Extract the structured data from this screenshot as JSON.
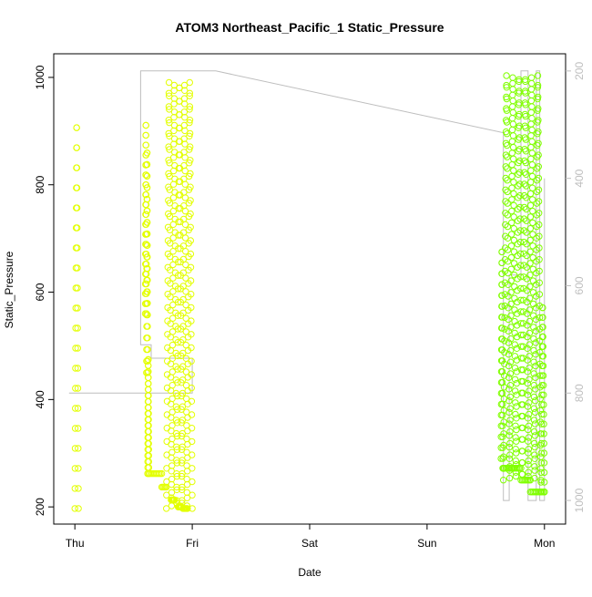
{
  "chart_data": {
    "type": "scatter",
    "title": "ATOM3 Northeast_Pacific_1 Static_Pressure",
    "xlabel": "Date",
    "ylabel": "Static_Pressure",
    "x_ticks": [
      "Thu",
      "Fri",
      "Sat",
      "Sun",
      "Mon"
    ],
    "y_ticks": [
      200,
      400,
      600,
      800,
      1000
    ],
    "y2_ticks": [
      200,
      400,
      600,
      800,
      1000
    ],
    "ylim": [
      168,
      1044
    ],
    "y2lim": [
      1044,
      168
    ],
    "grid": false,
    "marker": "open-circle",
    "colors": {
      "axis": "#000000",
      "secondary_axis": "#bebebe",
      "trace_line": "#bebebe",
      "early_points": "#e3ff00",
      "late_points": "#80ff00"
    },
    "secondary_series": {
      "name": "",
      "axis": "right",
      "points": [
        [
          -0.05,
          800
        ],
        [
          1.0,
          800
        ],
        [
          1.0,
          735
        ],
        [
          0.65,
          735
        ],
        [
          0.65,
          710
        ],
        [
          0.56,
          710
        ],
        [
          0.56,
          200
        ],
        [
          1.2,
          200
        ],
        [
          3.65,
          315
        ],
        [
          3.65,
          1000
        ],
        [
          3.7,
          1000
        ],
        [
          3.7,
          580
        ],
        [
          3.8,
          580
        ],
        [
          3.8,
          200
        ],
        [
          3.86,
          200
        ],
        [
          3.86,
          1000
        ],
        [
          3.93,
          1000
        ],
        [
          3.93,
          200
        ],
        [
          3.96,
          200
        ],
        [
          3.96,
          1000
        ],
        [
          4.0,
          1000
        ],
        [
          4.0,
          400
        ]
      ]
    },
    "series": [
      {
        "name": "",
        "color": "#e3ff00",
        "bursts": [
          {
            "start": 0.0,
            "end": 0.03,
            "min": 197,
            "max": 925
          },
          {
            "start": 0.6,
            "end": 0.61,
            "min": 560,
            "max": 920
          },
          {
            "start": 0.61,
            "end": 0.62,
            "min": 450,
            "max": 870
          },
          {
            "start": 0.62,
            "end": 0.63,
            "min": 262,
            "max": 480
          }
        ],
        "steps": [
          {
            "start": 0.62,
            "end": 0.74,
            "value": 262
          },
          {
            "start": 0.74,
            "end": 0.78,
            "value": 237
          }
        ],
        "oscillations": [
          {
            "start": 0.78,
            "end": 1.0,
            "min": 197,
            "max": 993,
            "cycles": 5,
            "n": 320
          },
          {
            "start": 0.82,
            "end": 0.85,
            "min": 213,
            "max": 213,
            "cycles": 1,
            "n": 8
          },
          {
            "start": 0.88,
            "end": 0.91,
            "min": 200,
            "max": 200,
            "cycles": 1,
            "n": 8
          },
          {
            "start": 0.92,
            "end": 0.96,
            "min": 197,
            "max": 197,
            "cycles": 1,
            "n": 8
          }
        ]
      },
      {
        "name": "",
        "color": "#80ff00",
        "bursts": [
          {
            "start": 3.63,
            "end": 3.645,
            "min": 290,
            "max": 685
          }
        ],
        "steps": [
          {
            "start": 3.645,
            "end": 3.72,
            "value": 272
          },
          {
            "start": 3.72,
            "end": 3.8,
            "value": 272
          },
          {
            "start": 3.8,
            "end": 3.88,
            "value": 250
          },
          {
            "start": 3.88,
            "end": 4.0,
            "value": 228
          }
        ],
        "oscillations": [
          {
            "start": 3.65,
            "end": 3.97,
            "min": 250,
            "max": 1005,
            "cycles": 6,
            "n": 420
          },
          {
            "start": 3.97,
            "end": 4.0,
            "min": 228,
            "max": 580,
            "cycles": 1,
            "n": 40
          }
        ]
      }
    ]
  }
}
